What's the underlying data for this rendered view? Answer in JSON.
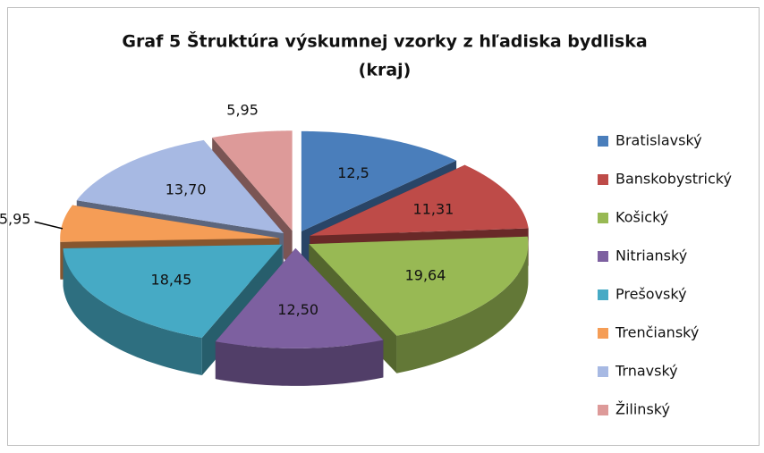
{
  "chart_data": {
    "type": "pie3d",
    "title": [
      "Graf 5  Štruktúra výskumnej vzorky z hľadiska bydliska",
      "(kraj)"
    ],
    "categories": [
      "Bratislavský",
      "Banskobystrický",
      "Košický",
      "Nitrianský",
      "Prešovský",
      "Trenčianský",
      "Trnavský",
      "Žilinský"
    ],
    "values": [
      12.5,
      11.31,
      19.64,
      12.5,
      18.45,
      5.95,
      13.7,
      5.95
    ],
    "value_labels": [
      "12,5",
      "11,31",
      "19,64",
      "12,50",
      "18,45",
      "5,95",
      "13,70",
      "5,95"
    ],
    "colors": [
      "#4a7ebb",
      "#be4b48",
      "#98b954",
      "#7d60a0",
      "#46aac5",
      "#f59d56",
      "#a7b9e3",
      "#dd9a99"
    ],
    "legend": "right"
  }
}
